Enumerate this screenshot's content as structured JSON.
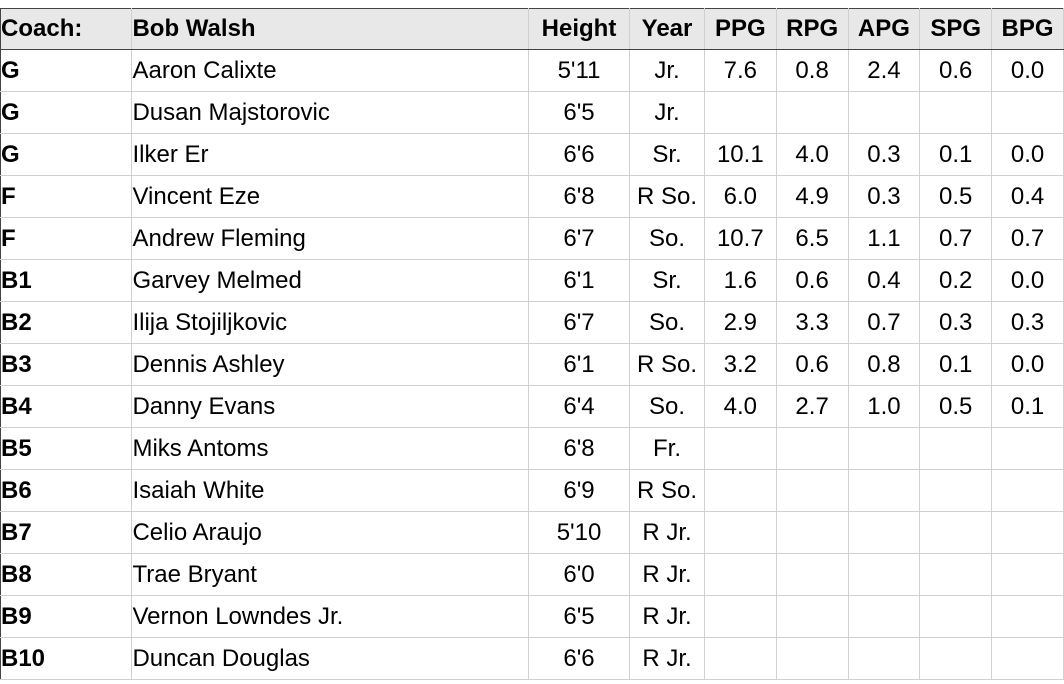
{
  "header": {
    "coach_label": "Coach:",
    "coach_name": "Bob Walsh",
    "height": "Height",
    "year": "Year",
    "ppg": "PPG",
    "rpg": "RPG",
    "apg": "APG",
    "spg": "SPG",
    "bpg": "BPG"
  },
  "rows": [
    {
      "pos": "G",
      "name": "Aaron Calixte",
      "height": "5'11",
      "year": "Jr.",
      "ppg": "7.6",
      "rpg": "0.8",
      "apg": "2.4",
      "spg": "0.6",
      "bpg": "0.0"
    },
    {
      "pos": "G",
      "name": "Dusan Majstorovic",
      "height": "6'5",
      "year": "Jr.",
      "ppg": "",
      "rpg": "",
      "apg": "",
      "spg": "",
      "bpg": ""
    },
    {
      "pos": "G",
      "name": "Ilker Er",
      "height": "6'6",
      "year": "Sr.",
      "ppg": "10.1",
      "rpg": "4.0",
      "apg": "0.3",
      "spg": "0.1",
      "bpg": "0.0"
    },
    {
      "pos": "F",
      "name": "Vincent Eze",
      "height": "6'8",
      "year": "R So.",
      "ppg": "6.0",
      "rpg": "4.9",
      "apg": "0.3",
      "spg": "0.5",
      "bpg": "0.4"
    },
    {
      "pos": "F",
      "name": "Andrew Fleming",
      "height": "6'7",
      "year": "So.",
      "ppg": "10.7",
      "rpg": "6.5",
      "apg": "1.1",
      "spg": "0.7",
      "bpg": "0.7"
    },
    {
      "pos": "B1",
      "name": "Garvey Melmed",
      "height": "6'1",
      "year": "Sr.",
      "ppg": "1.6",
      "rpg": "0.6",
      "apg": "0.4",
      "spg": "0.2",
      "bpg": "0.0"
    },
    {
      "pos": "B2",
      "name": "Ilija Stojiljkovic",
      "height": "6'7",
      "year": "So.",
      "ppg": "2.9",
      "rpg": "3.3",
      "apg": "0.7",
      "spg": "0.3",
      "bpg": "0.3"
    },
    {
      "pos": "B3",
      "name": "Dennis Ashley",
      "height": "6'1",
      "year": "R So.",
      "ppg": "3.2",
      "rpg": "0.6",
      "apg": "0.8",
      "spg": "0.1",
      "bpg": "0.0"
    },
    {
      "pos": "B4",
      "name": "Danny Evans",
      "height": "6'4",
      "year": "So.",
      "ppg": "4.0",
      "rpg": "2.7",
      "apg": "1.0",
      "spg": "0.5",
      "bpg": "0.1"
    },
    {
      "pos": "B5",
      "name": "Miks Antoms",
      "height": "6'8",
      "year": "Fr.",
      "ppg": "",
      "rpg": "",
      "apg": "",
      "spg": "",
      "bpg": ""
    },
    {
      "pos": "B6",
      "name": "Isaiah White",
      "height": "6'9",
      "year": "R So.",
      "ppg": "",
      "rpg": "",
      "apg": "",
      "spg": "",
      "bpg": ""
    },
    {
      "pos": "B7",
      "name": "Celio Araujo",
      "height": "5'10",
      "year": "R Jr.",
      "ppg": "",
      "rpg": "",
      "apg": "",
      "spg": "",
      "bpg": ""
    },
    {
      "pos": "B8",
      "name": "Trae Bryant",
      "height": "6'0",
      "year": "R Jr.",
      "ppg": "",
      "rpg": "",
      "apg": "",
      "spg": "",
      "bpg": ""
    },
    {
      "pos": "B9",
      "name": "Vernon Lowndes Jr.",
      "height": "6'5",
      "year": "R Jr.",
      "ppg": "",
      "rpg": "",
      "apg": "",
      "spg": "",
      "bpg": ""
    },
    {
      "pos": "B10",
      "name": "Duncan Douglas",
      "height": "6'6",
      "year": "R Jr.",
      "ppg": "",
      "rpg": "",
      "apg": "",
      "spg": "",
      "bpg": ""
    }
  ]
}
